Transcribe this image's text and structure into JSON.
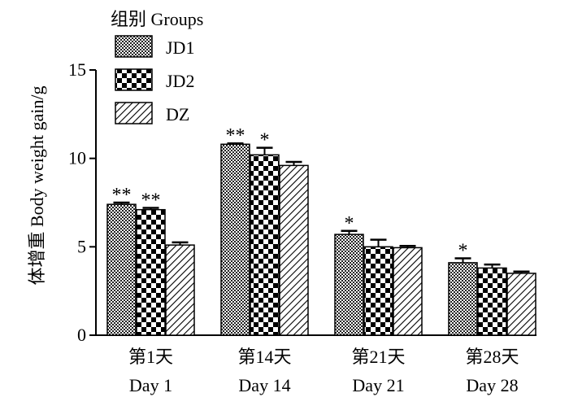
{
  "chart_data": {
    "type": "bar",
    "ylabel": "体增重  Body weight gain/g",
    "ylim": [
      0,
      15
    ],
    "yticks": [
      0,
      5,
      10,
      15
    ],
    "categories": [
      {
        "cn": "第1天",
        "en": "Day 1"
      },
      {
        "cn": "第14天",
        "en": "Day 14"
      },
      {
        "cn": "第21天",
        "en": "Day 21"
      },
      {
        "cn": "第28天",
        "en": "Day 28"
      }
    ],
    "legend_title": "组别 Groups",
    "legend_position": "top-left",
    "series": [
      {
        "name": "JD1",
        "pattern": "fine-check",
        "values": [
          7.4,
          10.8,
          5.7,
          4.1
        ],
        "errors": [
          0.1,
          0.05,
          0.2,
          0.25
        ],
        "marks": [
          "**",
          "**",
          "*",
          "*"
        ]
      },
      {
        "name": "JD2",
        "pattern": "checker",
        "values": [
          7.1,
          10.2,
          5.0,
          3.8
        ],
        "errors": [
          0.1,
          0.4,
          0.4,
          0.2
        ],
        "marks": [
          "**",
          "*",
          "",
          ""
        ]
      },
      {
        "name": "DZ",
        "pattern": "diagonal",
        "values": [
          5.1,
          9.6,
          4.95,
          3.5
        ],
        "errors": [
          0.15,
          0.2,
          0.1,
          0.1
        ],
        "marks": [
          "",
          "",
          "",
          ""
        ]
      }
    ]
  }
}
